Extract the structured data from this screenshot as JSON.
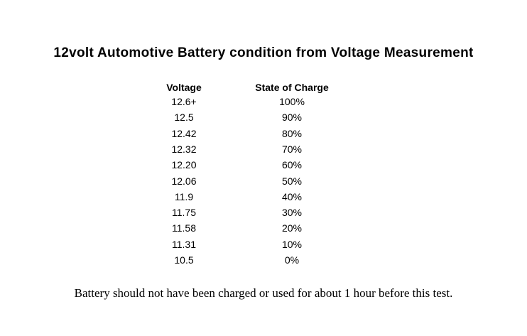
{
  "header": {
    "title": "12volt Automotive Battery condition from Voltage Measurement"
  },
  "table": {
    "columns": [
      "Voltage",
      "State of Charge"
    ],
    "rows": [
      [
        "12.6+",
        "100%"
      ],
      [
        "12.5",
        "90%"
      ],
      [
        "12.42",
        "80%"
      ],
      [
        "12.32",
        "70%"
      ],
      [
        "12.20",
        "60%"
      ],
      [
        "12.06",
        "50%"
      ],
      [
        "11.9",
        "40%"
      ],
      [
        "11.75",
        "30%"
      ],
      [
        "11.58",
        "20%"
      ],
      [
        "11.31",
        "10%"
      ],
      [
        "10.5",
        "0%"
      ]
    ]
  },
  "footer": {
    "note": "Battery should not have been charged or used for about 1 hour before this test."
  }
}
